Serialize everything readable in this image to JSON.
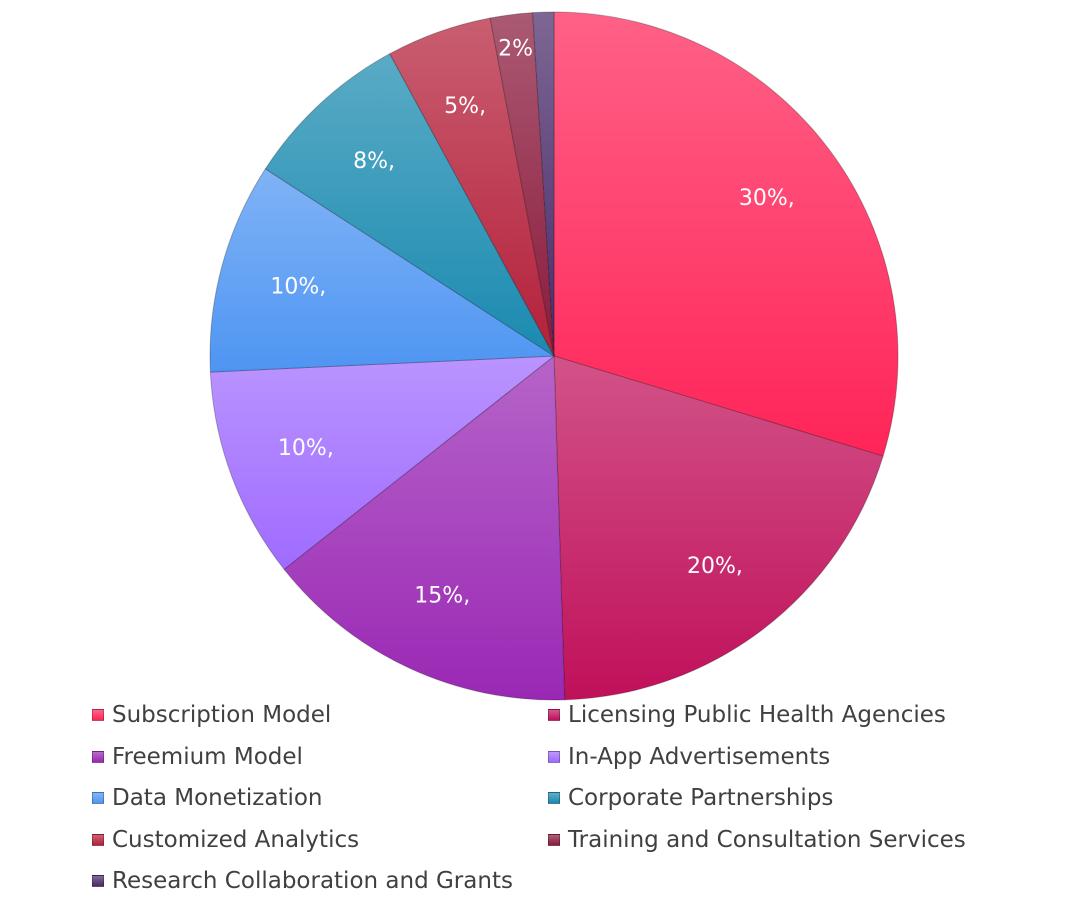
{
  "chart_data": {
    "type": "pie",
    "title": "",
    "legend_placement": "bottom",
    "slices": [
      {
        "name": "Subscription Model",
        "value": 30,
        "label": "30%,",
        "color": "#ff2458"
      },
      {
        "name": "Licensing Public Health Agencies",
        "value": 20,
        "label": "20%,",
        "color": "#c0105a"
      },
      {
        "name": "Freemium Model",
        "value": 15,
        "label": "15%,",
        "color": "#9a28b4"
      },
      {
        "name": "In-App Advertisements",
        "value": 10,
        "label": "10%,",
        "color": "#9f6bff"
      },
      {
        "name": "Data Monetization",
        "value": 10,
        "label": "10%,",
        "color": "#4e95f2"
      },
      {
        "name": "Corporate Partnerships",
        "value": 8,
        "label": "8%,",
        "color": "#1a8ab0"
      },
      {
        "name": "Customized Analytics",
        "value": 5,
        "label": "5%,",
        "color": "#b4203a"
      },
      {
        "name": "Training and Consultation Services",
        "value": 2,
        "label": "2%",
        "color": "#8a1a3c"
      },
      {
        "name": "Research Collaboration and Grants",
        "value": 1,
        "label": "",
        "color": "#4a2a6a"
      }
    ]
  }
}
